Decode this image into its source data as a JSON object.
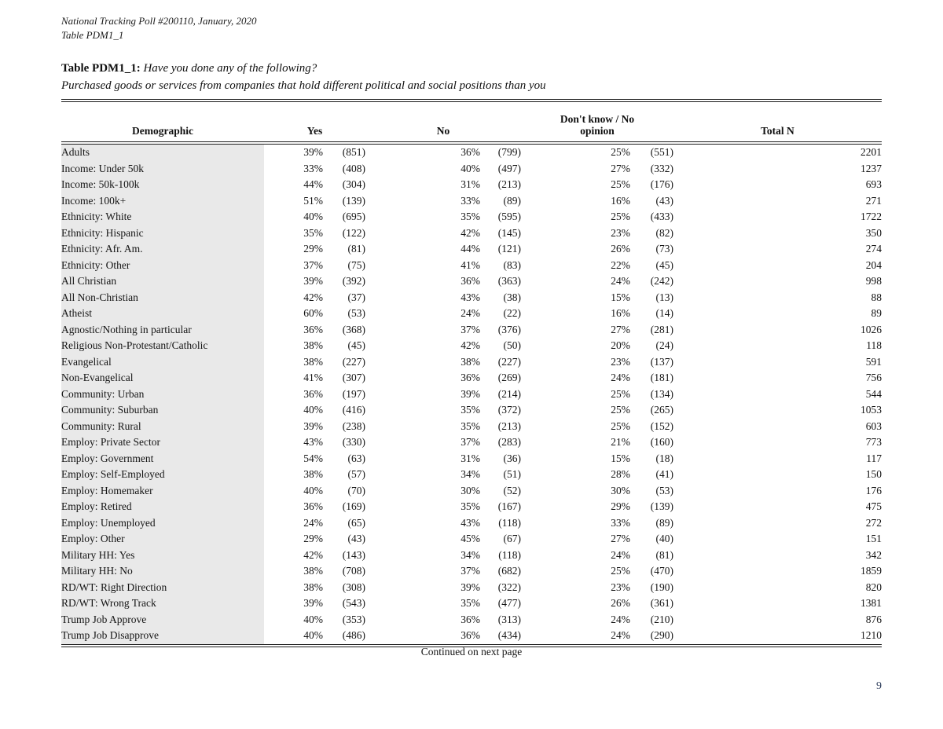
{
  "page": {
    "meta_line1": "National Tracking Poll #200110, January, 2020",
    "meta_line2": "Table PDM1_1",
    "title_label": "Table PDM1_1:",
    "title_question": "Have you done any of the following?",
    "title_subtitle": "Purchased goods or services from companies that hold different political and social positions than you",
    "continued_note": "Continued on next page",
    "page_number": "9"
  },
  "colors": {
    "row_shade": "#e9e9e9",
    "rule": "#1c1c1c",
    "page_number_text": "#2f3e5c",
    "background": "#ffffff"
  },
  "table": {
    "headers": {
      "demographic": "Demographic",
      "yes": "Yes",
      "no": "No",
      "dk_line1": "Don't know / No",
      "dk_line2": "opinion",
      "total": "Total N"
    },
    "rows": [
      [
        "Adults",
        39,
        851,
        36,
        799,
        25,
        551,
        2201
      ],
      [
        "Income: Under 50k",
        33,
        408,
        40,
        497,
        27,
        332,
        1237
      ],
      [
        "Income: 50k-100k",
        44,
        304,
        31,
        213,
        25,
        176,
        693
      ],
      [
        "Income: 100k+",
        51,
        139,
        33,
        89,
        16,
        43,
        271
      ],
      [
        "Ethnicity: White",
        40,
        695,
        35,
        595,
        25,
        433,
        1722
      ],
      [
        "Ethnicity: Hispanic",
        35,
        122,
        42,
        145,
        23,
        82,
        350
      ],
      [
        "Ethnicity: Afr. Am.",
        29,
        81,
        44,
        121,
        26,
        73,
        274
      ],
      [
        "Ethnicity: Other",
        37,
        75,
        41,
        83,
        22,
        45,
        204
      ],
      [
        "All Christian",
        39,
        392,
        36,
        363,
        24,
        242,
        998
      ],
      [
        "All Non-Christian",
        42,
        37,
        43,
        38,
        15,
        13,
        88
      ],
      [
        "Atheist",
        60,
        53,
        24,
        22,
        16,
        14,
        89
      ],
      [
        "Agnostic/Nothing in particular",
        36,
        368,
        37,
        376,
        27,
        281,
        1026
      ],
      [
        "Religious Non-Protestant/Catholic",
        38,
        45,
        42,
        50,
        20,
        24,
        118
      ],
      [
        "Evangelical",
        38,
        227,
        38,
        227,
        23,
        137,
        591
      ],
      [
        "Non-Evangelical",
        41,
        307,
        36,
        269,
        24,
        181,
        756
      ],
      [
        "Community: Urban",
        36,
        197,
        39,
        214,
        25,
        134,
        544
      ],
      [
        "Community: Suburban",
        40,
        416,
        35,
        372,
        25,
        265,
        1053
      ],
      [
        "Community: Rural",
        39,
        238,
        35,
        213,
        25,
        152,
        603
      ],
      [
        "Employ: Private Sector",
        43,
        330,
        37,
        283,
        21,
        160,
        773
      ],
      [
        "Employ: Government",
        54,
        63,
        31,
        36,
        15,
        18,
        117
      ],
      [
        "Employ: Self-Employed",
        38,
        57,
        34,
        51,
        28,
        41,
        150
      ],
      [
        "Employ: Homemaker",
        40,
        70,
        30,
        52,
        30,
        53,
        176
      ],
      [
        "Employ: Retired",
        36,
        169,
        35,
        167,
        29,
        139,
        475
      ],
      [
        "Employ: Unemployed",
        24,
        65,
        43,
        118,
        33,
        89,
        272
      ],
      [
        "Employ: Other",
        29,
        43,
        45,
        67,
        27,
        40,
        151
      ],
      [
        "Military HH: Yes",
        42,
        143,
        34,
        118,
        24,
        81,
        342
      ],
      [
        "Military HH: No",
        38,
        708,
        37,
        682,
        25,
        470,
        1859
      ],
      [
        "RD/WT: Right Direction",
        38,
        308,
        39,
        322,
        23,
        190,
        820
      ],
      [
        "RD/WT: Wrong Track",
        39,
        543,
        35,
        477,
        26,
        361,
        1381
      ],
      [
        "Trump Job Approve",
        40,
        353,
        36,
        313,
        24,
        210,
        876
      ],
      [
        "Trump Job Disapprove",
        40,
        486,
        36,
        434,
        24,
        290,
        1210
      ]
    ]
  },
  "chart_data": {
    "type": "table",
    "title": "Table PDM1_1: Have you done any of the following? Purchased goods or services from companies that hold different political and social positions than you",
    "columns": [
      "Demographic",
      "Yes %",
      "Yes (n)",
      "No %",
      "No (n)",
      "Don't know / No opinion %",
      "Don't know / No opinion (n)",
      "Total N"
    ]
  }
}
